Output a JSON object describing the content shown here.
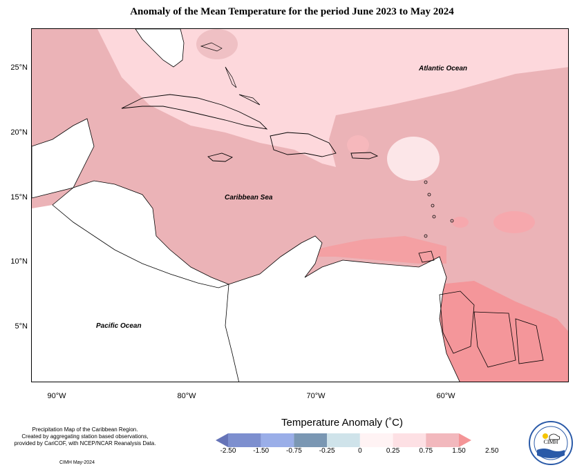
{
  "title": "Anomaly of the Mean Temperature for the period June 2023 to May 2024",
  "map": {
    "labels": {
      "atlantic": "Atlantic Ocean",
      "caribbean": "Caribbean Sea",
      "pacific": "Pacific Ocean"
    },
    "lat_ticks": [
      "25°N",
      "20°N",
      "15°N",
      "10°N",
      "5°N"
    ],
    "lon_ticks": [
      "90°W",
      "80°W",
      "70°W",
      "60°W"
    ]
  },
  "legend": {
    "title": "Temperature Anomaly (˚C)",
    "colors": [
      "#6674b8",
      "#7d8fcf",
      "#9aaee8",
      "#7a97b3",
      "#cfe3ea",
      "#fff3f4",
      "#fde0e4",
      "#f2b8bd",
      "#f49597"
    ],
    "ticks": [
      "-2.50",
      "-1.50",
      "-0.75",
      "-0.25",
      "0",
      "0.25",
      "0.75",
      "1.50",
      "2.50"
    ]
  },
  "credits": {
    "line1": "Precipitation Map of the Caribbean Region.",
    "line2": "Created by aggregating station based observations,",
    "line3": "provided by CariCOF, with NCEP/NCAR Reanalysis Data.",
    "date": "CIMH May-2024"
  },
  "logo": {
    "text": "CIMH"
  }
}
